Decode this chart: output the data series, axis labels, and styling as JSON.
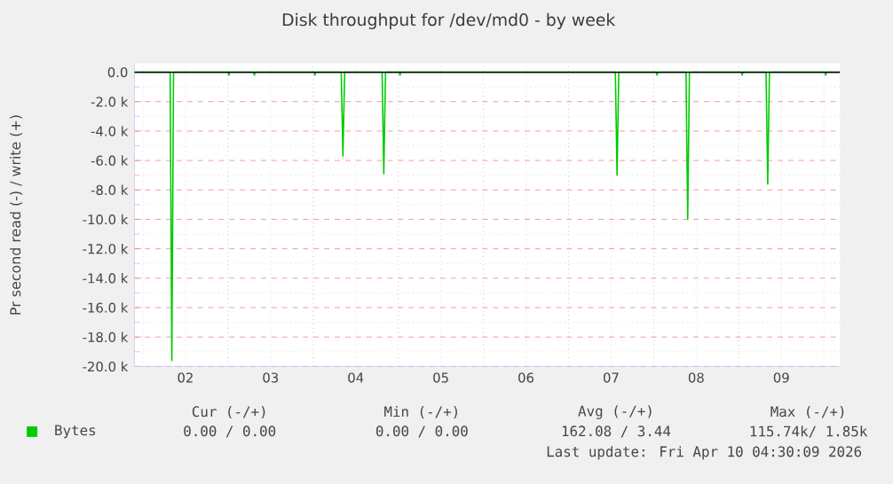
{
  "chart_data": {
    "type": "line",
    "title": "Disk throughput for /dev/md0 - by week",
    "ylabel": "Pr second read (-) / write (+)",
    "x": [
      1.9,
      2.32,
      2.34,
      2.36,
      3.0,
      3.01,
      3.02,
      3.3,
      3.31,
      3.32,
      4.01,
      4.02,
      4.03,
      4.33,
      4.35,
      4.37,
      4.81,
      4.83,
      4.85,
      5.01,
      5.02,
      5.03,
      7.55,
      7.57,
      7.59,
      8.03,
      8.04,
      8.05,
      8.38,
      8.4,
      8.42,
      9.03,
      9.04,
      9.05,
      9.32,
      9.34,
      9.36,
      10.01,
      10.02,
      10.03,
      10.19
    ],
    "series": [
      {
        "name": "Bytes",
        "color": "#00cc00",
        "values": [
          0,
          0,
          -19600,
          0,
          0,
          -200,
          0,
          0,
          -200,
          0,
          0,
          -200,
          0,
          0,
          -5700,
          0,
          0,
          -6900,
          0,
          0,
          -200,
          0,
          0,
          -7000,
          0,
          0,
          -200,
          0,
          0,
          -10000,
          0,
          0,
          -200,
          0,
          0,
          -7600,
          0,
          0,
          -200,
          0,
          0
        ]
      }
    ],
    "xlim": [
      1.9,
      10.19
    ],
    "xticks": [
      {
        "value": 2,
        "label": null
      },
      {
        "value": 2.5,
        "label": "02"
      },
      {
        "value": 3,
        "label": null
      },
      {
        "value": 3.5,
        "label": "03"
      },
      {
        "value": 4,
        "label": null
      },
      {
        "value": 4.5,
        "label": "04"
      },
      {
        "value": 5,
        "label": null
      },
      {
        "value": 5.5,
        "label": "05"
      },
      {
        "value": 6,
        "label": null
      },
      {
        "value": 6.5,
        "label": "06"
      },
      {
        "value": 7,
        "label": null
      },
      {
        "value": 7.5,
        "label": "07"
      },
      {
        "value": 8,
        "label": null
      },
      {
        "value": 8.5,
        "label": "08"
      },
      {
        "value": 9,
        "label": null
      },
      {
        "value": 9.5,
        "label": "09"
      },
      {
        "value": 10,
        "label": null
      }
    ],
    "ylim": [
      -20000,
      600
    ],
    "yticks": [
      {
        "value": 0,
        "label": "0.0"
      },
      {
        "value": -2000,
        "label": "-2.0 k"
      },
      {
        "value": -4000,
        "label": "-4.0 k"
      },
      {
        "value": -6000,
        "label": "-6.0 k"
      },
      {
        "value": -8000,
        "label": "-8.0 k"
      },
      {
        "value": -10000,
        "label": "-10.0 k"
      },
      {
        "value": -12000,
        "label": "-12.0 k"
      },
      {
        "value": -14000,
        "label": "-14.0 k"
      },
      {
        "value": -16000,
        "label": "-16.0 k"
      },
      {
        "value": -18000,
        "label": "-18.0 k"
      },
      {
        "value": -20000,
        "label": "-20.0 k"
      }
    ],
    "ref_lines": [
      {
        "axis": "y",
        "value": 0,
        "color": "#000000"
      }
    ],
    "grid": true,
    "legend": "bottom left",
    "marker": "none",
    "line_style": "solid",
    "annotations": [
      "Cur (-/+)",
      "Min (-/+)",
      "Avg (-/+)",
      "Max (-/+)",
      "0.00 /   0.00",
      "0.00 /   0.00",
      "162.08 /   3.44",
      "115.74k/  1.85k",
      "Last update: Fri Apr 10 04:30:09 2026"
    ]
  }
}
